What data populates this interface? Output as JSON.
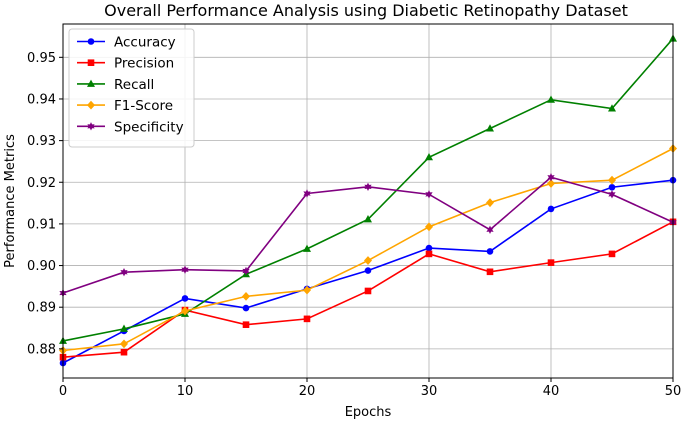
{
  "chart_data": {
    "type": "line",
    "title": "Overall Performance Analysis using Diabetic Retinopathy Dataset",
    "xlabel": "Epochs",
    "ylabel": "Performance Metrics",
    "xlim": [
      0,
      50
    ],
    "ylim": [
      0.873,
      0.958
    ],
    "xticks": [
      0,
      10,
      20,
      30,
      40,
      50
    ],
    "yticks": [
      0.88,
      0.89,
      0.9,
      0.91,
      0.92,
      0.93,
      0.94,
      0.95
    ],
    "ytick_labels": [
      "0.88",
      "0.89",
      "0.90",
      "0.91",
      "0.92",
      "0.93",
      "0.94",
      "0.95"
    ],
    "grid": true,
    "legend_position": "top-left",
    "x": [
      0,
      5,
      10,
      15,
      20,
      25,
      30,
      35,
      40,
      45,
      50
    ],
    "series": [
      {
        "name": "Accuracy",
        "color": "#0000ff",
        "marker": "circle",
        "values": [
          0.8766,
          0.8843,
          0.8921,
          0.8898,
          0.8944,
          0.8988,
          0.9042,
          0.9034,
          0.9136,
          0.9188,
          0.9205
        ]
      },
      {
        "name": "Precision",
        "color": "#ff0000",
        "marker": "square",
        "values": [
          0.878,
          0.8792,
          0.8893,
          0.8858,
          0.8872,
          0.8939,
          0.9028,
          0.8985,
          0.9007,
          0.9028,
          0.9105
        ]
      },
      {
        "name": "Recall",
        "color": "#008000",
        "marker": "triangle",
        "values": [
          0.8819,
          0.8848,
          0.8884,
          0.8979,
          0.904,
          0.9111,
          0.926,
          0.9329,
          0.9398,
          0.9377,
          0.9545
        ]
      },
      {
        "name": "F1-Score",
        "color": "#ffa500",
        "marker": "diamond",
        "values": [
          0.8796,
          0.8812,
          0.8891,
          0.8926,
          0.8941,
          0.9012,
          0.9093,
          0.9151,
          0.9197,
          0.9205,
          0.9281
        ]
      },
      {
        "name": "Specificity",
        "color": "#800080",
        "marker": "star",
        "values": [
          0.8934,
          0.8984,
          0.899,
          0.8987,
          0.9173,
          0.9189,
          0.9171,
          0.9086,
          0.9212,
          0.9171,
          0.9104
        ]
      }
    ]
  }
}
